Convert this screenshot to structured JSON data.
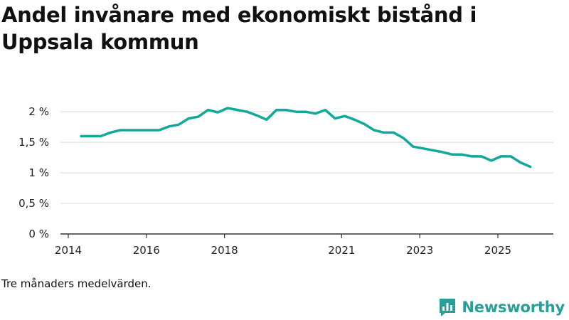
{
  "title": "Andel invånare med ekonomiskt bistånd i Uppsala kommun",
  "footnote": "Tre månaders medelvärden.",
  "brand": {
    "name": "Newsworthy",
    "icon": "newsworthy-logo-icon"
  },
  "colors": {
    "line": "#14a89a",
    "grid": "#d8d8d8",
    "axis": "#333333",
    "brand": "#2a9f95"
  },
  "chart_data": {
    "type": "line",
    "title": "Andel invånare med ekonomiskt bistånd i Uppsala kommun",
    "xlabel": "",
    "ylabel": "",
    "ylim": [
      0,
      2.2
    ],
    "xlim": [
      2014.0,
      2026.4
    ],
    "yticks": [
      {
        "value": 0,
        "label": "0 %"
      },
      {
        "value": 0.5,
        "label": "0,5 %"
      },
      {
        "value": 1,
        "label": "1 %"
      },
      {
        "value": 1.5,
        "label": "1,5 %"
      },
      {
        "value": 2,
        "label": "2 %"
      }
    ],
    "xticks": [
      {
        "value": 2014,
        "label": "2014"
      },
      {
        "value": 2016,
        "label": "2016"
      },
      {
        "value": 2018,
        "label": "2018"
      },
      {
        "value": 2021,
        "label": "2021"
      },
      {
        "value": 2023,
        "label": "2023"
      },
      {
        "value": 2025,
        "label": "2025"
      }
    ],
    "grid": true,
    "series": [
      {
        "name": "Andel invånare med ekonomiskt bistånd",
        "x": [
          2014.33,
          2014.58,
          2014.83,
          2015.08,
          2015.33,
          2015.58,
          2015.83,
          2016.08,
          2016.33,
          2016.58,
          2016.83,
          2017.08,
          2017.33,
          2017.58,
          2017.83,
          2018.08,
          2018.33,
          2018.58,
          2018.83,
          2019.08,
          2019.33,
          2019.58,
          2019.83,
          2020.08,
          2020.33,
          2020.58,
          2020.83,
          2021.08,
          2021.33,
          2021.58,
          2021.83,
          2022.08,
          2022.33,
          2022.58,
          2022.83,
          2023.08,
          2023.33,
          2023.58,
          2023.83,
          2024.08,
          2024.33,
          2024.58,
          2024.83,
          2025.08,
          2025.33,
          2025.58,
          2025.83
        ],
        "values": [
          1.6,
          1.6,
          1.6,
          1.66,
          1.7,
          1.7,
          1.7,
          1.7,
          1.7,
          1.76,
          1.79,
          1.89,
          1.92,
          2.03,
          1.99,
          2.06,
          2.03,
          2.0,
          1.94,
          1.87,
          2.03,
          2.03,
          2.0,
          2.0,
          1.97,
          2.03,
          1.89,
          1.93,
          1.87,
          1.8,
          1.7,
          1.66,
          1.66,
          1.57,
          1.43,
          1.4,
          1.37,
          1.34,
          1.3,
          1.3,
          1.27,
          1.27,
          1.2,
          1.27,
          1.27,
          1.17,
          1.1
        ]
      }
    ]
  }
}
